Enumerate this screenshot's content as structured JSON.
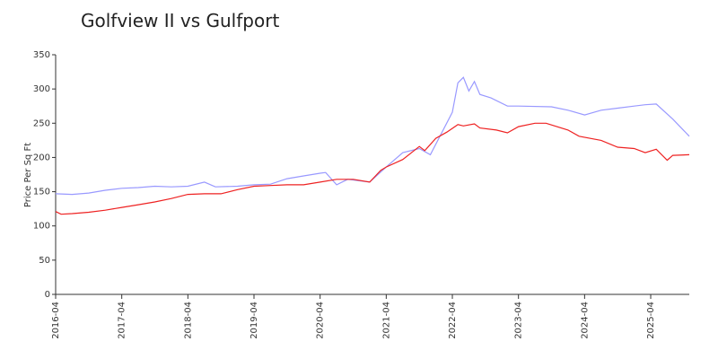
{
  "chart_data": {
    "type": "line",
    "title": "Golfview II vs Gulfport",
    "y_label": "Price Per Sq Ft",
    "xlim": [
      "2016-04",
      "2025-11"
    ],
    "xticks": [
      "2016-04",
      "2017-04",
      "2018-04",
      "2019-04",
      "2020-04",
      "2021-04",
      "2022-04",
      "2023-04",
      "2024-04",
      "2025-04"
    ],
    "ylim": [
      0,
      350
    ],
    "yticks": [
      0,
      50,
      100,
      150,
      200,
      250,
      300,
      350
    ],
    "grid": false,
    "series": [
      {
        "color": "#9999ff",
        "x": [
          "2016-04",
          "2016-07",
          "2016-10",
          "2017-01",
          "2017-04",
          "2017-07",
          "2017-10",
          "2018-01",
          "2018-04",
          "2018-07",
          "2018-09",
          "2019-01",
          "2019-04",
          "2019-07",
          "2019-10",
          "2020-01",
          "2020-04",
          "2020-05",
          "2020-07",
          "2020-09",
          "2021-01",
          "2021-04",
          "2021-07",
          "2021-10",
          "2021-12",
          "2022-04",
          "2022-05",
          "2022-06",
          "2022-07",
          "2022-08",
          "2022-09",
          "2022-11",
          "2023-02",
          "2023-04",
          "2023-10",
          "2024-01",
          "2024-04",
          "2024-07",
          "2024-10",
          "2025-01",
          "2025-03",
          "2025-05",
          "2025-08",
          "2025-11"
        ],
        "values": [
          147,
          146,
          148,
          152,
          155,
          156,
          158,
          157,
          158,
          164,
          157,
          158,
          160,
          161,
          169,
          173,
          177,
          178,
          160,
          168,
          164,
          186,
          207,
          213,
          204,
          266,
          309,
          317,
          297,
          311,
          292,
          287,
          275,
          275,
          274,
          269,
          262,
          269,
          272,
          275,
          277,
          278,
          256,
          231
        ]
      },
      {
        "color": "#ee2222",
        "x": [
          "2016-04",
          "2016-05",
          "2016-07",
          "2016-10",
          "2017-01",
          "2017-04",
          "2017-07",
          "2017-10",
          "2018-01",
          "2018-04",
          "2018-07",
          "2018-10",
          "2019-01",
          "2019-04",
          "2019-07",
          "2019-10",
          "2020-01",
          "2020-04",
          "2020-07",
          "2020-10",
          "2021-01",
          "2021-03",
          "2021-04",
          "2021-07",
          "2021-10",
          "2021-11",
          "2022-01",
          "2022-03",
          "2022-05",
          "2022-06",
          "2022-08",
          "2022-09",
          "2022-12",
          "2023-02",
          "2023-04",
          "2023-07",
          "2023-09",
          "2024-01",
          "2024-03",
          "2024-07",
          "2024-10",
          "2025-01",
          "2025-03",
          "2025-05",
          "2025-07",
          "2025-08",
          "2025-11"
        ],
        "values": [
          121,
          117,
          118,
          120,
          123,
          127,
          131,
          135,
          140,
          146,
          147,
          147,
          153,
          158,
          159,
          160,
          160,
          164,
          168,
          168,
          164,
          181,
          186,
          197,
          216,
          210,
          228,
          237,
          248,
          246,
          249,
          243,
          240,
          236,
          245,
          250,
          250,
          240,
          231,
          225,
          215,
          213,
          207,
          212,
          196,
          203,
          204
        ]
      }
    ]
  }
}
